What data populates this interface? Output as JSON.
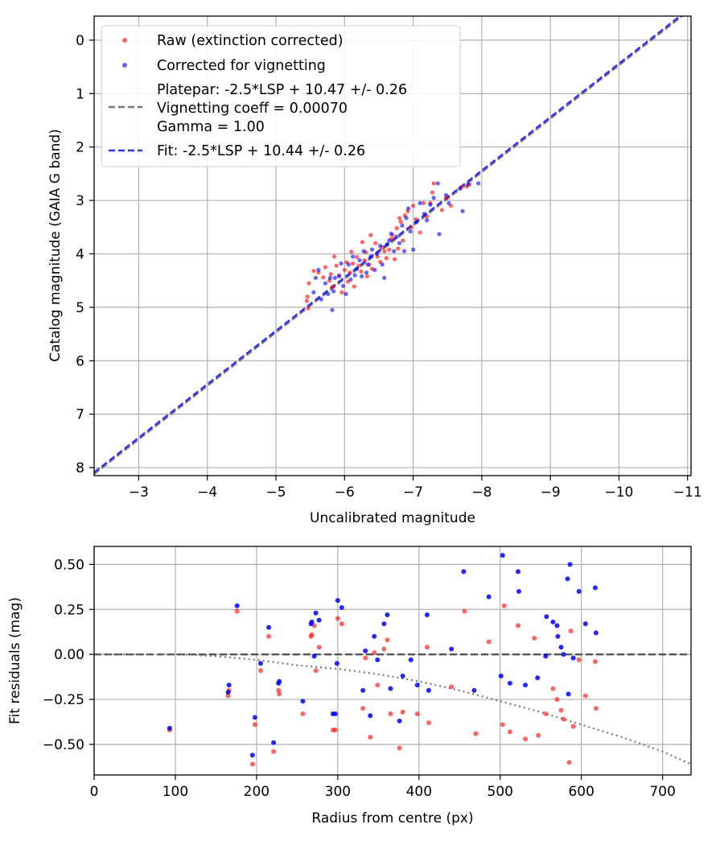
{
  "chart_data": [
    {
      "type": "scatter",
      "title": "",
      "xlabel": "Uncalibrated magnitude",
      "ylabel": "Catalog magnitude (GAIA G band)",
      "xlim": [
        -2.35,
        -11.05
      ],
      "ylim": [
        8.15,
        -0.45
      ],
      "x_inverted": true,
      "y_inverted": true,
      "x_ticks": [
        -3,
        -4,
        -5,
        -6,
        -7,
        -8,
        -9,
        -10,
        -11
      ],
      "y_ticks": [
        0,
        1,
        2,
        3,
        4,
        5,
        6,
        7,
        8
      ],
      "grid": true,
      "legend_position": "top-left",
      "series": [
        {
          "name": "Raw (extinction corrected)",
          "kind": "scatter",
          "color": "#ff0000",
          "points": [
            [
              -5.45,
              4.88
            ],
            [
              -5.46,
              4.8
            ],
            [
              -5.47,
              5.02
            ],
            [
              -5.48,
              4.55
            ],
            [
              -5.55,
              4.32
            ],
            [
              -5.62,
              4.35
            ],
            [
              -5.69,
              4.44
            ],
            [
              -5.72,
              4.25
            ],
            [
              -5.78,
              4.5
            ],
            [
              -5.8,
              4.38
            ],
            [
              -5.82,
              4.62
            ],
            [
              -5.85,
              4.05
            ],
            [
              -5.88,
              4.22
            ],
            [
              -5.92,
              4.4
            ],
            [
              -5.96,
              4.72
            ],
            [
              -6.0,
              4.3
            ],
            [
              -6.03,
              4.16
            ],
            [
              -6.05,
              4.52
            ],
            [
              -6.08,
              4.35
            ],
            [
              -6.1,
              3.96
            ],
            [
              -6.12,
              4.18
            ],
            [
              -6.14,
              4.61
            ],
            [
              -6.18,
              4.06
            ],
            [
              -6.21,
              4.22
            ],
            [
              -6.24,
              4.33
            ],
            [
              -6.26,
              3.78
            ],
            [
              -6.29,
              4.12
            ],
            [
              -6.31,
              3.97
            ],
            [
              -6.33,
              4.42
            ],
            [
              -6.36,
              4.2
            ],
            [
              -6.38,
              3.65
            ],
            [
              -6.4,
              4.28
            ],
            [
              -6.45,
              3.8
            ],
            [
              -6.48,
              4.05
            ],
            [
              -6.52,
              4.15
            ],
            [
              -6.55,
              3.88
            ],
            [
              -6.58,
              3.95
            ],
            [
              -6.61,
              4.08
            ],
            [
              -6.65,
              3.92
            ],
            [
              -6.68,
              3.72
            ],
            [
              -6.7,
              3.65
            ],
            [
              -6.73,
              4.1
            ],
            [
              -6.76,
              3.52
            ],
            [
              -6.78,
              3.9
            ],
            [
              -6.8,
              3.33
            ],
            [
              -6.82,
              3.4
            ],
            [
              -6.85,
              3.75
            ],
            [
              -6.88,
              3.28
            ],
            [
              -6.92,
              3.2
            ],
            [
              -6.97,
              3.5
            ],
            [
              -7.0,
              3.1
            ],
            [
              -7.04,
              3.35
            ],
            [
              -7.1,
              3.6
            ],
            [
              -7.15,
              3.05
            ],
            [
              -7.2,
              3.3
            ],
            [
              -7.25,
              3.05
            ],
            [
              -7.28,
              2.85
            ],
            [
              -7.3,
              2.68
            ],
            [
              -7.42,
              3.18
            ],
            [
              -7.48,
              2.95
            ],
            [
              -7.55,
              3.1
            ],
            [
              -7.7,
              2.75
            ],
            [
              -7.78,
              2.74
            ],
            [
              -7.82,
              2.7
            ]
          ]
        },
        {
          "name": "Corrected for vignetting",
          "kind": "scatter",
          "color": "#0000ff",
          "points": [
            [
              -5.55,
              4.72
            ],
            [
              -5.58,
              4.45
            ],
            [
              -5.62,
              4.3
            ],
            [
              -5.66,
              4.85
            ],
            [
              -5.72,
              4.55
            ],
            [
              -5.76,
              4.75
            ],
            [
              -5.79,
              4.45
            ],
            [
              -5.82,
              5.05
            ],
            [
              -5.84,
              4.7
            ],
            [
              -5.86,
              4.45
            ],
            [
              -5.92,
              4.42
            ],
            [
              -5.95,
              4.18
            ],
            [
              -5.98,
              4.6
            ],
            [
              -6.02,
              4.75
            ],
            [
              -6.06,
              4.2
            ],
            [
              -6.09,
              4.48
            ],
            [
              -6.12,
              4.05
            ],
            [
              -6.15,
              4.4
            ],
            [
              -6.18,
              4.28
            ],
            [
              -6.22,
              4.12
            ],
            [
              -6.25,
              4.42
            ],
            [
              -6.28,
              3.95
            ],
            [
              -6.32,
              4.35
            ],
            [
              -6.34,
              4.2
            ],
            [
              -6.38,
              4.05
            ],
            [
              -6.4,
              3.92
            ],
            [
              -6.44,
              4.3
            ],
            [
              -6.47,
              4.0
            ],
            [
              -6.52,
              3.85
            ],
            [
              -6.55,
              4.2
            ],
            [
              -6.58,
              4.45
            ],
            [
              -6.62,
              3.82
            ],
            [
              -6.65,
              3.75
            ],
            [
              -6.68,
              3.62
            ],
            [
              -6.72,
              3.95
            ],
            [
              -6.76,
              3.68
            ],
            [
              -6.8,
              3.8
            ],
            [
              -6.84,
              3.47
            ],
            [
              -6.87,
              3.95
            ],
            [
              -6.9,
              3.33
            ],
            [
              -6.93,
              3.15
            ],
            [
              -6.96,
              3.58
            ],
            [
              -7.0,
              3.92
            ],
            [
              -7.05,
              3.4
            ],
            [
              -7.1,
              3.05
            ],
            [
              -7.16,
              3.25
            ],
            [
              -7.2,
              3.37
            ],
            [
              -7.25,
              3.08
            ],
            [
              -7.3,
              2.95
            ],
            [
              -7.36,
              2.68
            ],
            [
              -7.38,
              3.63
            ],
            [
              -7.48,
              2.9
            ],
            [
              -7.52,
              3.05
            ],
            [
              -7.68,
              2.78
            ],
            [
              -7.72,
              3.2
            ],
            [
              -7.8,
              2.7
            ],
            [
              -7.95,
              2.68
            ]
          ]
        },
        {
          "name": "Platepar: -2.5*LSP + 10.47 +/- 0.26\nVignetting coeff = 0.00070\nGamma = 1.00",
          "kind": "line",
          "style": "dashed",
          "color": "#777777",
          "slope": 1,
          "intercept": 10.47,
          "x": [
            -2.35,
            -11.05
          ]
        },
        {
          "name": "Fit: -2.5*LSP + 10.44 +/- 0.26",
          "kind": "line",
          "style": "dashed",
          "color": "#3333ee",
          "slope": 1,
          "intercept": 10.44,
          "x": [
            -2.35,
            -11.05
          ]
        }
      ]
    },
    {
      "type": "scatter",
      "title": "",
      "xlabel": "Radius from centre (px)",
      "ylabel": "Fit residuals (mag)",
      "xlim": [
        0,
        735
      ],
      "ylim": [
        -0.67,
        0.6
      ],
      "x_ticks": [
        0,
        100,
        200,
        300,
        400,
        500,
        600,
        700
      ],
      "y_ticks": [
        -0.5,
        -0.25,
        0.0,
        0.25,
        0.5
      ],
      "y_tick_labels": [
        "−0.50",
        "−0.25",
        "0.00",
        "0.25",
        "0.50"
      ],
      "grid": true,
      "series": [
        {
          "name": "",
          "kind": "scatter",
          "color": "#ff0000",
          "points": [
            [
              93,
              -0.42
            ],
            [
              165,
              -0.23
            ],
            [
              166,
              -0.2
            ],
            [
              176,
              0.24
            ],
            [
              195,
              -0.61
            ],
            [
              198,
              -0.39
            ],
            [
              205,
              -0.09
            ],
            [
              215,
              0.1
            ],
            [
              221,
              -0.54
            ],
            [
              227,
              -0.2
            ],
            [
              228,
              -0.22
            ],
            [
              257,
              -0.33
            ],
            [
              267,
              0.1
            ],
            [
              268,
              0.11
            ],
            [
              271,
              0.16
            ],
            [
              273,
              -0.09
            ],
            [
              277,
              0.04
            ],
            [
              294,
              -0.42
            ],
            [
              297,
              -0.42
            ],
            [
              300,
              0.2
            ],
            [
              305,
              0.17
            ],
            [
              331,
              -0.3
            ],
            [
              334,
              -0.02
            ],
            [
              340,
              -0.46
            ],
            [
              345,
              0.01
            ],
            [
              349,
              -0.17
            ],
            [
              357,
              0.03
            ],
            [
              361,
              0.08
            ],
            [
              365,
              -0.33
            ],
            [
              376,
              -0.52
            ],
            [
              380,
              -0.32
            ],
            [
              398,
              -0.33
            ],
            [
              410,
              0.04
            ],
            [
              412,
              -0.38
            ],
            [
              440,
              -0.18
            ],
            [
              456,
              0.24
            ],
            [
              470,
              -0.44
            ],
            [
              486,
              0.07
            ],
            [
              503,
              -0.39
            ],
            [
              505,
              0.27
            ],
            [
              512,
              -0.43
            ],
            [
              522,
              0.16
            ],
            [
              531,
              -0.47
            ],
            [
              542,
              0.09
            ],
            [
              547,
              -0.45
            ],
            [
              556,
              -0.33
            ],
            [
              565,
              -0.19
            ],
            [
              570,
              -0.25
            ],
            [
              575,
              -0.31
            ],
            [
              578,
              -0.36
            ],
            [
              585,
              -0.6
            ],
            [
              587,
              0.13
            ],
            [
              590,
              -0.4
            ],
            [
              597,
              -0.03
            ],
            [
              605,
              -0.23
            ],
            [
              617,
              -0.04
            ],
            [
              618,
              -0.3
            ]
          ]
        },
        {
          "name": "",
          "kind": "scatter",
          "color": "#0000ff",
          "points": [
            [
              93,
              -0.41
            ],
            [
              165,
              -0.21
            ],
            [
              166,
              -0.17
            ],
            [
              176,
              0.27
            ],
            [
              195,
              -0.56
            ],
            [
              198,
              -0.35
            ],
            [
              205,
              -0.05
            ],
            [
              215,
              0.15
            ],
            [
              221,
              -0.49
            ],
            [
              227,
              -0.16
            ],
            [
              228,
              -0.15
            ],
            [
              257,
              -0.26
            ],
            [
              267,
              0.17
            ],
            [
              268,
              0.18
            ],
            [
              271,
              -0.01
            ],
            [
              273,
              0.23
            ],
            [
              277,
              0.19
            ],
            [
              294,
              -0.33
            ],
            [
              297,
              -0.33
            ],
            [
              299,
              -0.05
            ],
            [
              300,
              0.3
            ],
            [
              305,
              0.26
            ],
            [
              331,
              -0.2
            ],
            [
              334,
              0.02
            ],
            [
              340,
              -0.34
            ],
            [
              345,
              0.1
            ],
            [
              349,
              -0.03
            ],
            [
              357,
              0.17
            ],
            [
              361,
              0.22
            ],
            [
              365,
              -0.19
            ],
            [
              376,
              -0.37
            ],
            [
              380,
              -0.12
            ],
            [
              390,
              -0.03
            ],
            [
              398,
              -0.17
            ],
            [
              410,
              0.22
            ],
            [
              412,
              -0.2
            ],
            [
              440,
              0.03
            ],
            [
              455,
              0.46
            ],
            [
              468,
              -0.2
            ],
            [
              486,
              0.32
            ],
            [
              501,
              -0.12
            ],
            [
              503,
              0.55
            ],
            [
              512,
              -0.16
            ],
            [
              522,
              0.46
            ],
            [
              523,
              0.35
            ],
            [
              531,
              -0.17
            ],
            [
              546,
              -0.13
            ],
            [
              556,
              -0.01
            ],
            [
              557,
              0.21
            ],
            [
              565,
              0.18
            ],
            [
              570,
              0.16
            ],
            [
              571,
              0.1
            ],
            [
              575,
              0.04
            ],
            [
              578,
              0.0
            ],
            [
              583,
              0.42
            ],
            [
              584,
              -0.22
            ],
            [
              586,
              0.5
            ],
            [
              590,
              -0.02
            ],
            [
              597,
              0.35
            ],
            [
              605,
              0.17
            ],
            [
              617,
              0.37
            ],
            [
              618,
              0.12
            ]
          ]
        },
        {
          "name": "",
          "kind": "line",
          "style": "dashed",
          "color": "#555555",
          "constant": 0
        },
        {
          "name": "",
          "kind": "curve",
          "style": "dotted",
          "color": "#777777",
          "x": [
            0,
            50,
            100,
            120,
            150,
            200,
            250,
            300,
            350,
            400,
            450,
            500,
            550,
            600,
            650,
            700,
            735
          ],
          "y": [
            0.0,
            0.0,
            0.0,
            -0.002,
            -0.01,
            -0.03,
            -0.06,
            -0.08,
            -0.11,
            -0.15,
            -0.2,
            -0.26,
            -0.32,
            -0.39,
            -0.46,
            -0.54,
            -0.61
          ]
        }
      ]
    }
  ]
}
